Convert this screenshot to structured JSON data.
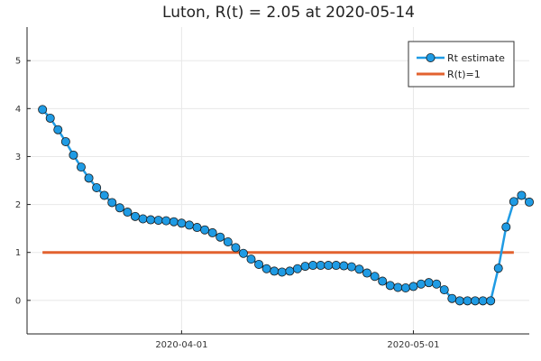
{
  "chart_data": {
    "type": "line",
    "title": "Luton, R(t) = 2.05 at 2020-05-14",
    "xlabel": "",
    "ylabel": "",
    "x_start": "2020-03-14",
    "x_end": "2020-05-14",
    "xlim": [
      "2020-03-12",
      "2020-05-16"
    ],
    "ylim": [
      -0.7,
      5.7
    ],
    "x_ticks": [
      {
        "date": "2020-04-01",
        "label": "2020-04-01"
      },
      {
        "date": "2020-05-01",
        "label": "2020-05-01"
      }
    ],
    "y_ticks": [
      0,
      1,
      2,
      3,
      4,
      5
    ],
    "y_tick_labels": [
      "0",
      "1",
      "2",
      "3",
      "4",
      "5"
    ],
    "grid": true,
    "legend_position": "top-right",
    "series": [
      {
        "name": "Rt estimate",
        "color": "#1f9be4",
        "marker": "circle",
        "values": [
          3.98,
          3.8,
          3.56,
          3.31,
          3.03,
          2.78,
          2.55,
          2.35,
          2.19,
          2.04,
          1.93,
          1.84,
          1.75,
          1.7,
          1.68,
          1.67,
          1.66,
          1.64,
          1.61,
          1.57,
          1.52,
          1.47,
          1.41,
          1.32,
          1.22,
          1.1,
          0.98,
          0.86,
          0.75,
          0.66,
          0.61,
          0.59,
          0.61,
          0.66,
          0.71,
          0.73,
          0.73,
          0.73,
          0.73,
          0.72,
          0.7,
          0.65,
          0.57,
          0.5,
          0.4,
          0.31,
          0.27,
          0.26,
          0.29,
          0.34,
          0.37,
          0.34,
          0.22,
          0.04,
          -0.01,
          -0.01,
          -0.01,
          -0.01,
          -0.01,
          0.67,
          1.53,
          2.06,
          2.19,
          2.05
        ]
      },
      {
        "name": "R(t)=1",
        "color": "#e2622f",
        "marker": "none",
        "values": [
          1,
          1
        ]
      }
    ]
  }
}
